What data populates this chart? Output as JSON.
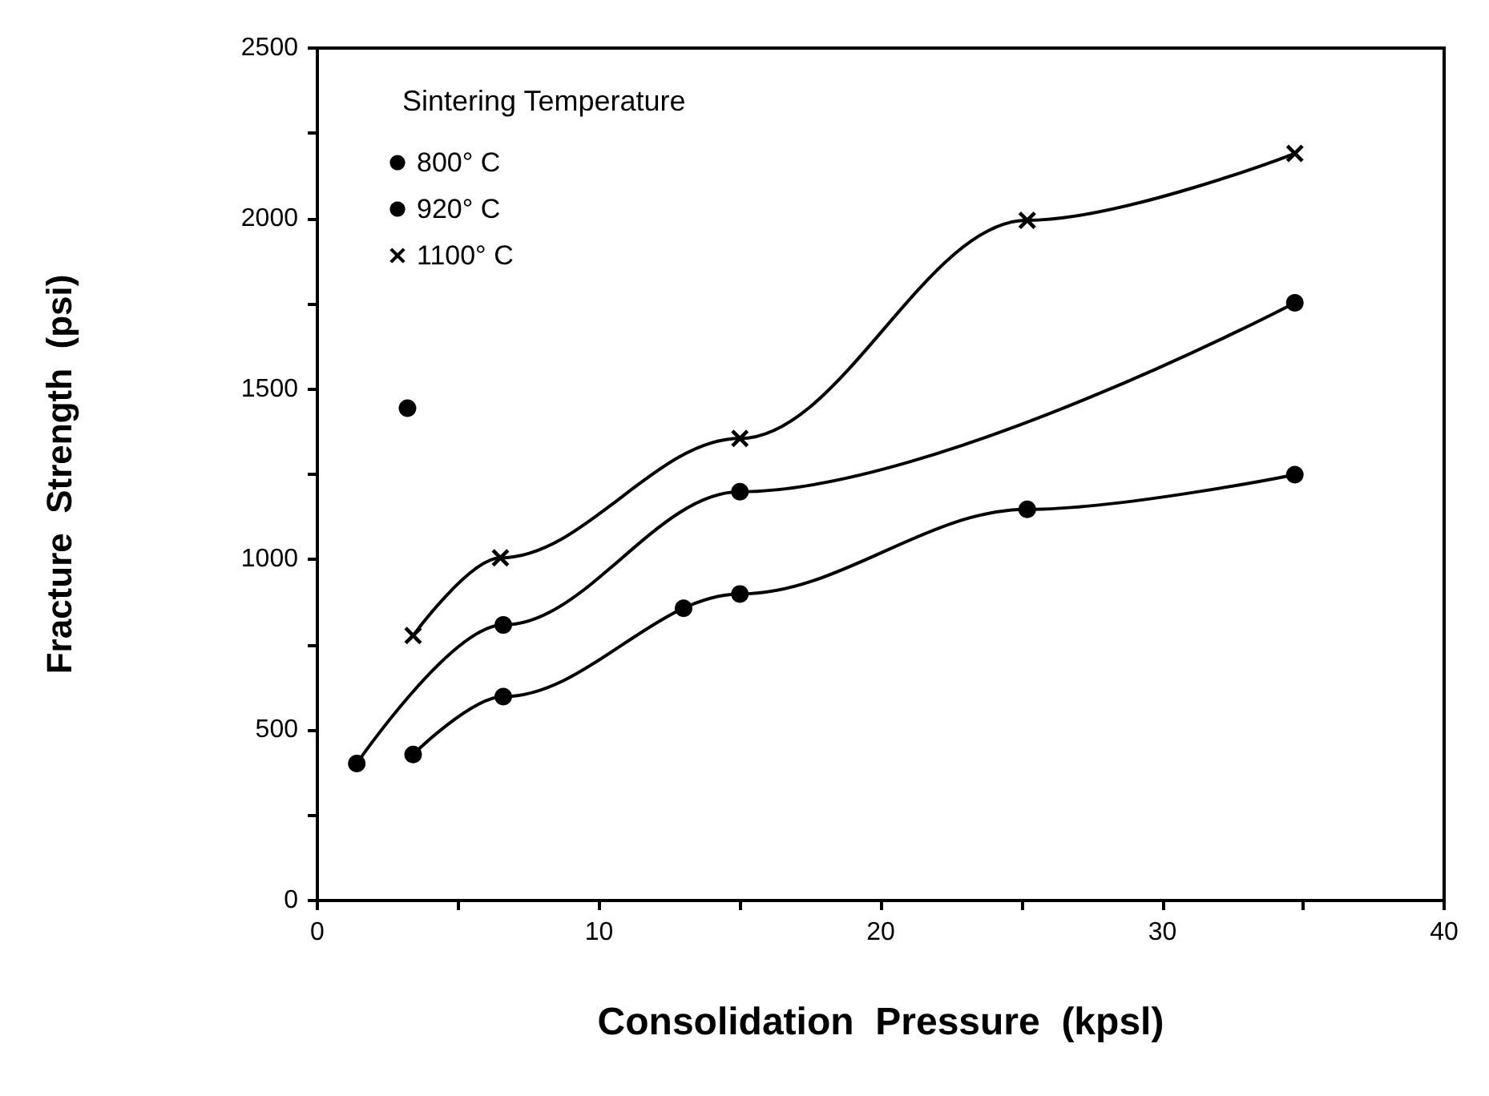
{
  "chart_data": {
    "type": "line",
    "xlabel": "Consolidation  Pressure  (kpsl)",
    "ylabel": "Fracture  Strength  (psi)",
    "legend_title": "Sintering Temperature",
    "legend": "top left",
    "grid": false,
    "line_style": "solid",
    "xlim": [
      0,
      40
    ],
    "xticks": [
      0,
      {
        "value": 5,
        "label": null
      },
      10,
      {
        "value": 15,
        "label": null
      },
      20,
      {
        "value": 25,
        "label": null
      },
      30,
      {
        "value": 35,
        "label": null
      },
      40
    ],
    "ylim": [
      0,
      2500
    ],
    "yticks": [
      0,
      {
        "value": 250,
        "label": null
      },
      500,
      {
        "value": 750,
        "label": null
      },
      1000,
      {
        "value": 1250,
        "label": null
      },
      1500,
      {
        "value": 1750,
        "label": null
      },
      2000,
      {
        "value": 2250,
        "label": null
      },
      2500
    ],
    "series": [
      {
        "name": "800° C",
        "color": "#000000",
        "marker": "circle",
        "x": [
          3.4,
          6.6,
          15,
          25.2,
          34.7
        ],
        "values": [
          428,
          598,
          899,
          1147,
          1249
        ]
      },
      {
        "name": "920° C",
        "color": "#000000",
        "marker": "circle",
        "x": [
          1.4,
          6.6,
          15,
          34.7
        ],
        "values": [
          402,
          808,
          1199,
          1753
        ]
      },
      {
        "name": "1100° C",
        "color": "#000000",
        "marker": "cross",
        "x": [
          3.4,
          6.5,
          15,
          25.2,
          34.7
        ],
        "values": [
          777,
          1005,
          1355,
          1995,
          2191
        ]
      },
      {
        "type": "scatter",
        "color": "#000000",
        "marker": "circle",
        "x": [
          3.2,
          13
        ],
        "values": [
          1444,
          857
        ]
      }
    ]
  }
}
